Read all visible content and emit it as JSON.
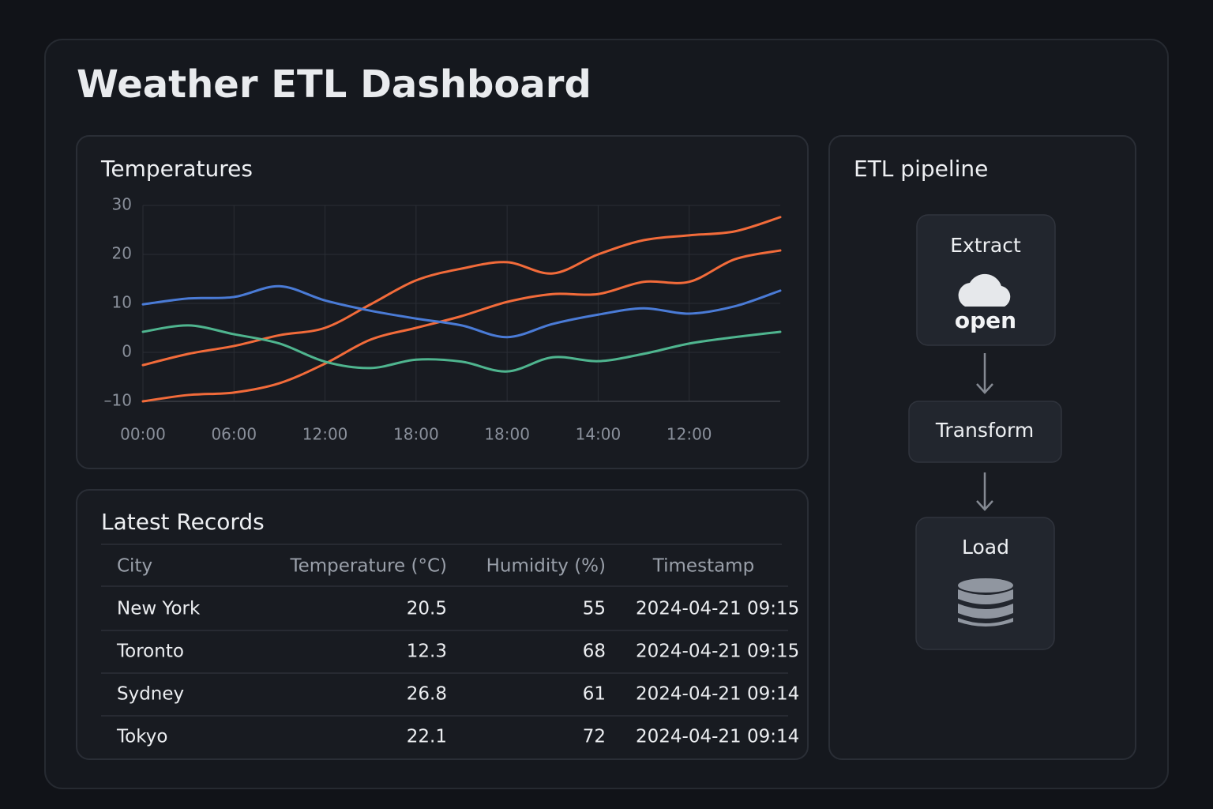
{
  "header": {
    "title": "Weather ETL Dashboard"
  },
  "chart_data": {
    "type": "line",
    "title": "Temperatures",
    "categories": [
      "00:00",
      null,
      "06:00",
      null,
      "12:00",
      null,
      "18:00",
      null,
      "18:00",
      null,
      "14:00",
      null,
      "12:00",
      null,
      null
    ],
    "series": [
      {
        "color": "#f26b3a",
        "values": [
          -2.6,
          -0.3,
          1.3,
          3.5,
          5.0,
          9.8,
          14.7,
          17.1,
          18.4,
          16.1,
          20.0,
          22.9,
          23.9,
          24.7,
          27.6
        ]
      },
      {
        "color": "#f26b3a",
        "values": [
          -10,
          -8.7,
          -8.2,
          -6.3,
          -2.3,
          2.6,
          5.0,
          7.4,
          10.3,
          11.9,
          11.9,
          14.4,
          14.4,
          19.0,
          20.8
        ]
      },
      {
        "color": "#4a7bd6",
        "values": [
          9.8,
          11.0,
          11.3,
          13.5,
          10.6,
          8.5,
          6.9,
          5.5,
          3.1,
          5.8,
          7.7,
          9.0,
          7.9,
          9.4,
          12.6
        ]
      },
      {
        "color": "#4fb58f",
        "values": [
          4.2,
          5.5,
          3.7,
          1.8,
          -1.9,
          -3.2,
          -1.5,
          -1.9,
          -3.9,
          -1.0,
          -1.8,
          -0.3,
          1.8,
          3.1,
          4.2
        ]
      }
    ],
    "ylim": [
      -10,
      30
    ],
    "yticks": [
      30,
      20,
      10,
      0,
      {
        "value": -10,
        "label": "–10"
      }
    ],
    "grid": true
  },
  "table": {
    "title": "Latest Records",
    "columns": [
      "City",
      "Temperature (°C)",
      "Humidity (%)",
      "Timestamp"
    ],
    "rows": [
      [
        "New York",
        20.5,
        55,
        "2024-04-21 09:15"
      ],
      [
        "Toronto",
        12.3,
        68,
        "2024-04-21 09:15"
      ],
      [
        "Sydney",
        26.8,
        61,
        "2024-04-21 09:14"
      ],
      [
        "Tokyo",
        22.1,
        72,
        "2024-04-21 09:14"
      ]
    ]
  },
  "pipeline": {
    "title": "ETL pipeline",
    "steps": [
      {
        "label": "Extract",
        "icon_text": "open"
      },
      {
        "label": "Transform"
      },
      {
        "label": "Load"
      }
    ]
  }
}
